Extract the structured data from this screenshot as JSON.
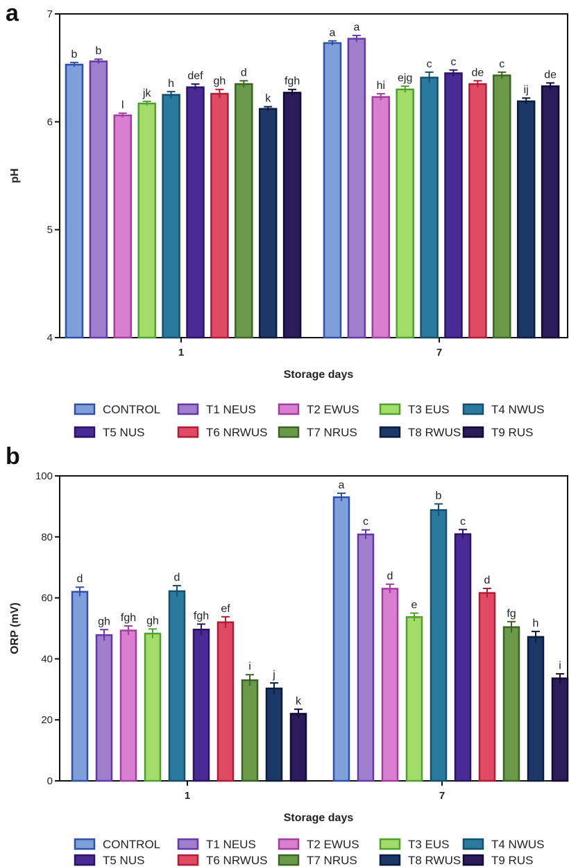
{
  "series_colors": [
    {
      "fill": "#7f9fdb",
      "stroke": "#3050a8"
    },
    {
      "fill": "#9f7fcc",
      "stroke": "#6438a8"
    },
    {
      "fill": "#d87fd0",
      "stroke": "#a23ca0"
    },
    {
      "fill": "#a4dc6a",
      "stroke": "#50a030"
    },
    {
      "fill": "#2a7aa0",
      "stroke": "#14506c"
    },
    {
      "fill": "#4a2a94",
      "stroke": "#2a1464"
    },
    {
      "fill": "#e04a62",
      "stroke": "#b01c34"
    },
    {
      "fill": "#6a9a48",
      "stroke": "#3c6424"
    },
    {
      "fill": "#1c3868",
      "stroke": "#0c1c3c"
    },
    {
      "fill": "#2c1c5c",
      "stroke": "#140a34"
    }
  ],
  "chart_data": [
    {
      "panel_label": "a",
      "type": "bar",
      "xlabel": "Storage days",
      "ylabel": "pH",
      "categories": [
        "1",
        "7"
      ],
      "ylim": [
        4,
        7
      ],
      "yticks": [
        "4",
        "5",
        "6",
        "7"
      ],
      "series": [
        {
          "name": "CONTROL",
          "values": [
            6.53,
            6.73
          ],
          "errors": [
            0.02,
            0.02
          ],
          "letters": [
            "b",
            "a"
          ]
        },
        {
          "name": "T1 NEUS",
          "values": [
            6.56,
            6.77
          ],
          "errors": [
            0.02,
            0.03
          ],
          "letters": [
            "b",
            "a"
          ]
        },
        {
          "name": "T2 EWUS",
          "values": [
            6.06,
            6.23
          ],
          "errors": [
            0.02,
            0.03
          ],
          "letters": [
            "l",
            "hi"
          ]
        },
        {
          "name": "T3 EUS",
          "values": [
            6.17,
            6.3
          ],
          "errors": [
            0.02,
            0.03
          ],
          "letters": [
            "jk",
            "ejg"
          ]
        },
        {
          "name": "T4 NWUS",
          "values": [
            6.25,
            6.41
          ],
          "errors": [
            0.03,
            0.05
          ],
          "letters": [
            "h",
            "c"
          ]
        },
        {
          "name": "T5 NUS",
          "values": [
            6.32,
            6.45
          ],
          "errors": [
            0.03,
            0.03
          ],
          "letters": [
            "def",
            "c"
          ]
        },
        {
          "name": "T6 NRWUS",
          "values": [
            6.26,
            6.35
          ],
          "errors": [
            0.04,
            0.03
          ],
          "letters": [
            "gh",
            "de"
          ]
        },
        {
          "name": "T7 NRUS",
          "values": [
            6.35,
            6.43
          ],
          "errors": [
            0.03,
            0.03
          ],
          "letters": [
            "d",
            "c"
          ]
        },
        {
          "name": "T8 RWUS",
          "values": [
            6.12,
            6.19
          ],
          "errors": [
            0.02,
            0.03
          ],
          "letters": [
            "k",
            "ij"
          ]
        },
        {
          "name": "T9 RUS",
          "values": [
            6.27,
            6.33
          ],
          "errors": [
            0.03,
            0.03
          ],
          "letters": [
            "fgh",
            "de"
          ]
        }
      ]
    },
    {
      "panel_label": "b",
      "type": "bar",
      "xlabel": "Storage days",
      "ylabel": "ORP (mV)",
      "categories": [
        "1",
        "7"
      ],
      "ylim": [
        0,
        100
      ],
      "yticks": [
        "0",
        "20",
        "40",
        "60",
        "80",
        "100"
      ],
      "series": [
        {
          "name": "CONTROL",
          "values": [
            62.0,
            93.0
          ],
          "errors": [
            1.5,
            1.3
          ],
          "letters": [
            "d",
            "a"
          ]
        },
        {
          "name": "T1 NEUS",
          "values": [
            47.8,
            80.8
          ],
          "errors": [
            1.8,
            1.5
          ],
          "letters": [
            "gh",
            "c"
          ]
        },
        {
          "name": "T2 EWUS",
          "values": [
            49.3,
            63.0
          ],
          "errors": [
            1.5,
            1.5
          ],
          "letters": [
            "fgh",
            "d"
          ]
        },
        {
          "name": "T3 EUS",
          "values": [
            48.3,
            53.7
          ],
          "errors": [
            1.5,
            1.3
          ],
          "letters": [
            "gh",
            "e"
          ]
        },
        {
          "name": "T4 NWUS",
          "values": [
            62.2,
            88.8
          ],
          "errors": [
            1.8,
            2.0
          ],
          "letters": [
            "d",
            "b"
          ]
        },
        {
          "name": "T5 NUS",
          "values": [
            49.6,
            80.9
          ],
          "errors": [
            1.8,
            1.5
          ],
          "letters": [
            "fgh",
            "c"
          ]
        },
        {
          "name": "T6 NRWUS",
          "values": [
            52.0,
            61.6
          ],
          "errors": [
            1.8,
            1.5
          ],
          "letters": [
            "ef",
            "d"
          ]
        },
        {
          "name": "T7 NRUS",
          "values": [
            33.0,
            50.4
          ],
          "errors": [
            1.8,
            1.8
          ],
          "letters": [
            "i",
            "fg"
          ]
        },
        {
          "name": "T8 RWUS",
          "values": [
            30.3,
            47.2
          ],
          "errors": [
            1.8,
            1.8
          ],
          "letters": [
            "j",
            "h"
          ]
        },
        {
          "name": "T9 RUS",
          "values": [
            22.0,
            33.6
          ],
          "errors": [
            1.5,
            1.5
          ],
          "letters": [
            "k",
            "i"
          ]
        }
      ]
    }
  ]
}
